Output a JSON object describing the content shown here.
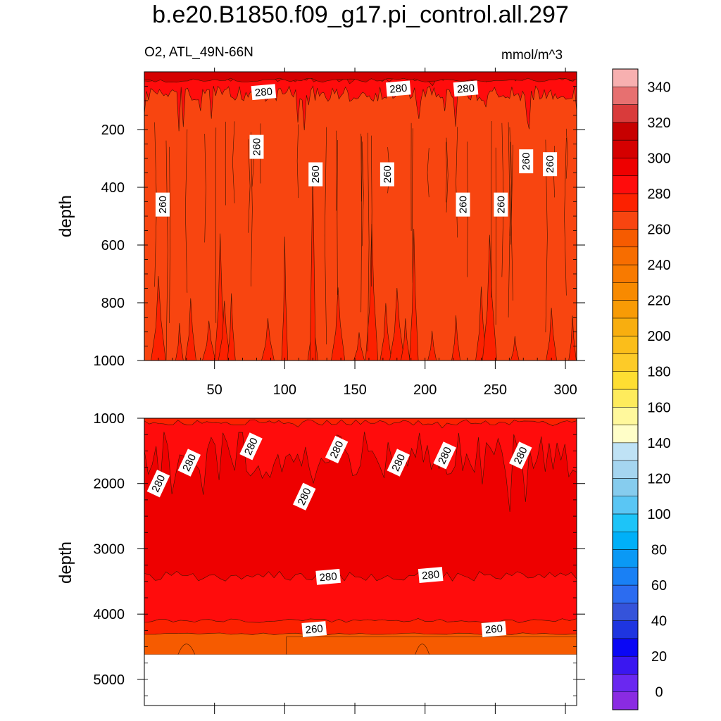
{
  "title": "b.e20.B1850.f09_g17.pi_control.all.297",
  "left_subtitle": "O2, ATL_49N-66N",
  "right_subtitle": "mmol/m^3",
  "colors": {
    "levels": [
      "#8A2BE2",
      "#6A28F0",
      "#3A17F0",
      "#0A07F5",
      "#1E35E0",
      "#3553DA",
      "#2C6CF0",
      "#1980F5",
      "#0A99F5",
      "#00B0F8",
      "#1DC4F8",
      "#5AC6F4",
      "#86CCEE",
      "#A5D5F0",
      "#BFE2F5",
      "#FFFEC8",
      "#FFF89C",
      "#FEEB5C",
      "#FEDE32",
      "#FDCB28",
      "#FBBE1A",
      "#F8AE0F",
      "#F89B05",
      "#F88A00",
      "#F87A00",
      "#F76D00",
      "#F65B00",
      "#F84510",
      "#FC2100",
      "#FF0C0C",
      "#EE0000",
      "#D50000",
      "#C70000",
      "#D93B3B",
      "#E77070",
      "#F7B0B0"
    ],
    "contour_line": "#3a1500"
  },
  "chart_data": [
    {
      "type": "contour",
      "panel": "upper",
      "xlabel": "",
      "ylabel": "depth",
      "xlim": [
        0,
        308
      ],
      "ylim": [
        1000,
        0
      ],
      "x_ticks": [
        50,
        100,
        150,
        200,
        250,
        300
      ],
      "y_ticks": [
        200,
        400,
        600,
        800,
        1000
      ],
      "contour_labels": [
        {
          "text": "280",
          "x": 85,
          "depth": 70
        },
        {
          "text": "280",
          "x": 181,
          "depth": 58
        },
        {
          "text": "280",
          "x": 229,
          "depth": 58
        },
        {
          "text": "260",
          "x": 80,
          "depth": 260
        },
        {
          "text": "260",
          "x": 122,
          "depth": 355
        },
        {
          "text": "260",
          "x": 173,
          "depth": 355
        },
        {
          "text": "260",
          "x": 13,
          "depth": 460
        },
        {
          "text": "260",
          "x": 227,
          "depth": 460
        },
        {
          "text": "260",
          "x": 254,
          "depth": 460
        },
        {
          "text": "260",
          "x": 272,
          "depth": 310
        },
        {
          "text": "260",
          "x": 289,
          "depth": 320
        }
      ],
      "bands_by_depth": [
        {
          "depth": 0,
          "value": 300
        },
        {
          "depth": 50,
          "value": 290
        },
        {
          "depth": 100,
          "value": 280
        },
        {
          "depth": 200,
          "value": 265
        },
        {
          "depth": 1000,
          "value": 265
        }
      ]
    },
    {
      "type": "contour",
      "panel": "lower",
      "xlabel": "",
      "ylabel": "depth",
      "xlim": [
        0,
        308
      ],
      "ylim": [
        5400,
        1000
      ],
      "y_ticks": [
        1000,
        2000,
        3000,
        4000,
        5000
      ],
      "data_bottom_depth": 4620,
      "contour_labels": [
        {
          "text": "280",
          "x": 10,
          "depth": 2000
        },
        {
          "text": "280",
          "x": 32,
          "depth": 1680
        },
        {
          "text": "280",
          "x": 76,
          "depth": 1430
        },
        {
          "text": "280",
          "x": 114,
          "depth": 2200
        },
        {
          "text": "280",
          "x": 137,
          "depth": 1480
        },
        {
          "text": "280",
          "x": 181,
          "depth": 1680
        },
        {
          "text": "280",
          "x": 214,
          "depth": 1570
        },
        {
          "text": "280",
          "x": 268,
          "depth": 1570
        },
        {
          "text": "280",
          "x": 131,
          "depth": 3430
        },
        {
          "text": "280",
          "x": 204,
          "depth": 3400
        },
        {
          "text": "260",
          "x": 121,
          "depth": 4230
        },
        {
          "text": "260",
          "x": 249,
          "depth": 4230
        }
      ],
      "bands_by_depth": [
        {
          "depth": 1000,
          "value": 280
        },
        {
          "depth": 2000,
          "value": 290
        },
        {
          "depth": 3400,
          "value": 280
        },
        {
          "depth": 4100,
          "value": 270
        },
        {
          "depth": 4300,
          "value": 255
        },
        {
          "depth": 4620,
          "value": 250
        }
      ]
    },
    {
      "type": "colorbar",
      "levels": [
        0,
        10,
        20,
        30,
        40,
        50,
        60,
        70,
        80,
        90,
        100,
        110,
        120,
        130,
        140,
        150,
        160,
        170,
        180,
        190,
        200,
        210,
        220,
        230,
        240,
        250,
        260,
        270,
        280,
        290,
        300,
        310,
        320,
        330,
        340,
        350
      ],
      "tick_labels": [
        "0",
        "20",
        "40",
        "60",
        "80",
        "100",
        "120",
        "140",
        "160",
        "180",
        "200",
        "220",
        "240",
        "260",
        "280",
        "300",
        "320",
        "340"
      ]
    }
  ]
}
